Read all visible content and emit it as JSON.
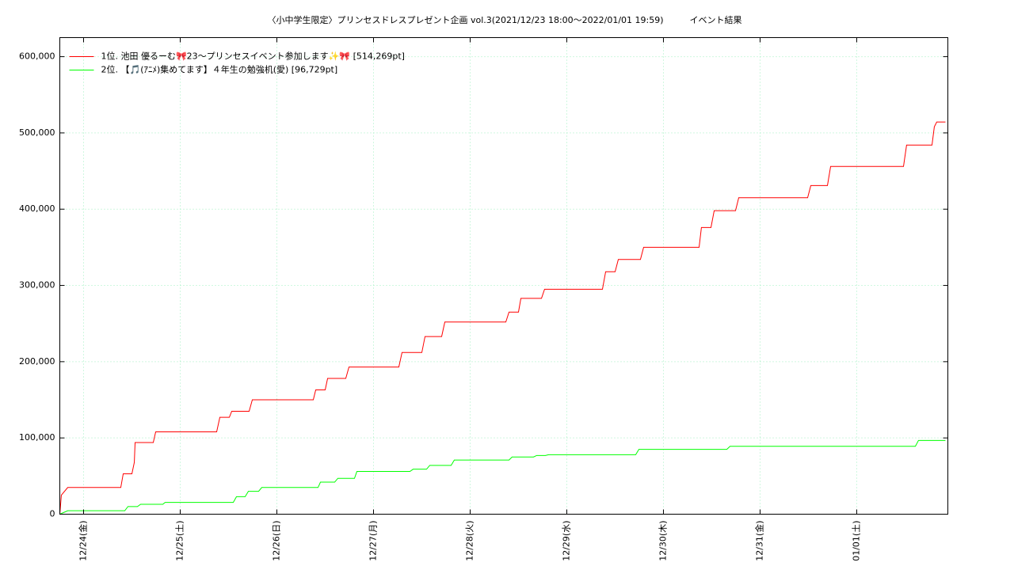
{
  "chart_data": {
    "type": "line",
    "title": "〈小中学生限定〉プリンセスドレスプレゼント企画 vol.3(2021/12/23 18:00～2022/01/01 19:59)　　　イベント結果",
    "xlim": [
      0.754,
      9.943
    ],
    "xticks": [
      {
        "value": 1,
        "label": "12/24(金)"
      },
      {
        "value": 2,
        "label": "12/25(土)"
      },
      {
        "value": 3,
        "label": "12/26(日)"
      },
      {
        "value": 4,
        "label": "12/27(月)"
      },
      {
        "value": 5,
        "label": "12/28(火)"
      },
      {
        "value": 6,
        "label": "12/29(水)"
      },
      {
        "value": 7,
        "label": "12/30(木)"
      },
      {
        "value": 8,
        "label": "12/31(金)"
      },
      {
        "value": 9,
        "label": "01/01(土)"
      }
    ],
    "ylim": [
      0,
      625000
    ],
    "yticks": [
      0,
      {
        "value": 100000,
        "label": "100,000"
      },
      {
        "value": 200000,
        "label": "200,000"
      },
      {
        "value": 300000,
        "label": "300,000"
      },
      {
        "value": 400000,
        "label": "400,000"
      },
      {
        "value": 500000,
        "label": "500,000"
      },
      {
        "value": 600000,
        "label": "600,000"
      }
    ],
    "grid": true,
    "legend": "top-left",
    "series": [
      {
        "name": "1位. 池田 優るーむ🎀23〜プリンセスイベント参加します✨🎀 [514,269pt]",
        "color": "#ff0000",
        "x": [
          0.754,
          0.77,
          0.836,
          1.385,
          1.41,
          1.5,
          1.525,
          1.533,
          1.721,
          1.746,
          2.377,
          2.41,
          2.508,
          2.533,
          2.713,
          2.746,
          3.377,
          3.402,
          3.5,
          3.525,
          3.713,
          3.746,
          4.262,
          4.295,
          4.5,
          4.533,
          4.705,
          4.738,
          5.369,
          5.402,
          5.5,
          5.525,
          5.738,
          5.77,
          6.369,
          6.402,
          6.5,
          6.533,
          6.762,
          6.795,
          7.369,
          7.393,
          7.492,
          7.525,
          7.746,
          7.779,
          8.492,
          8.525,
          8.697,
          8.73,
          9.484,
          9.516,
          9.779,
          9.803,
          9.828,
          9.918
        ],
        "values": [
          0,
          25000,
          35000,
          35000,
          53000,
          53000,
          68000,
          94000,
          94000,
          108000,
          108000,
          127000,
          127000,
          135000,
          135000,
          150000,
          150000,
          163000,
          163000,
          178000,
          178000,
          193000,
          193000,
          212000,
          212000,
          233000,
          233000,
          252000,
          252000,
          265000,
          265000,
          283000,
          283000,
          295000,
          295000,
          318000,
          318000,
          334000,
          334000,
          350000,
          350000,
          376000,
          376000,
          398000,
          398000,
          415000,
          415000,
          431000,
          431000,
          456000,
          456000,
          484000,
          484000,
          508000,
          514269,
          514269
        ]
      },
      {
        "name": "2位. 【🎵(ｱﾆﾒ)集めてます】４年生の勉強机(愛) [96,729pt]",
        "color": "#00ff00",
        "x": [
          0.754,
          0.836,
          1.426,
          1.459,
          1.557,
          1.59,
          1.82,
          1.844,
          2.549,
          2.582,
          2.672,
          2.705,
          2.811,
          2.844,
          3.426,
          3.451,
          3.598,
          3.631,
          3.803,
          3.828,
          4.377,
          4.41,
          4.549,
          4.582,
          4.803,
          4.836,
          5.402,
          5.434,
          5.656,
          5.689,
          5.779,
          5.811,
          6.713,
          6.746,
          7.656,
          7.689,
          9.607,
          9.639,
          9.918
        ],
        "values": [
          0,
          4500,
          4500,
          10000,
          10000,
          13000,
          13000,
          15500,
          15500,
          23000,
          23000,
          30000,
          30000,
          35000,
          35000,
          42000,
          42000,
          47000,
          47000,
          56000,
          56000,
          59000,
          59000,
          64000,
          64000,
          71000,
          71000,
          75000,
          75000,
          77000,
          77000,
          78000,
          78000,
          85000,
          85000,
          89000,
          89000,
          96729,
          96729
        ]
      }
    ]
  }
}
